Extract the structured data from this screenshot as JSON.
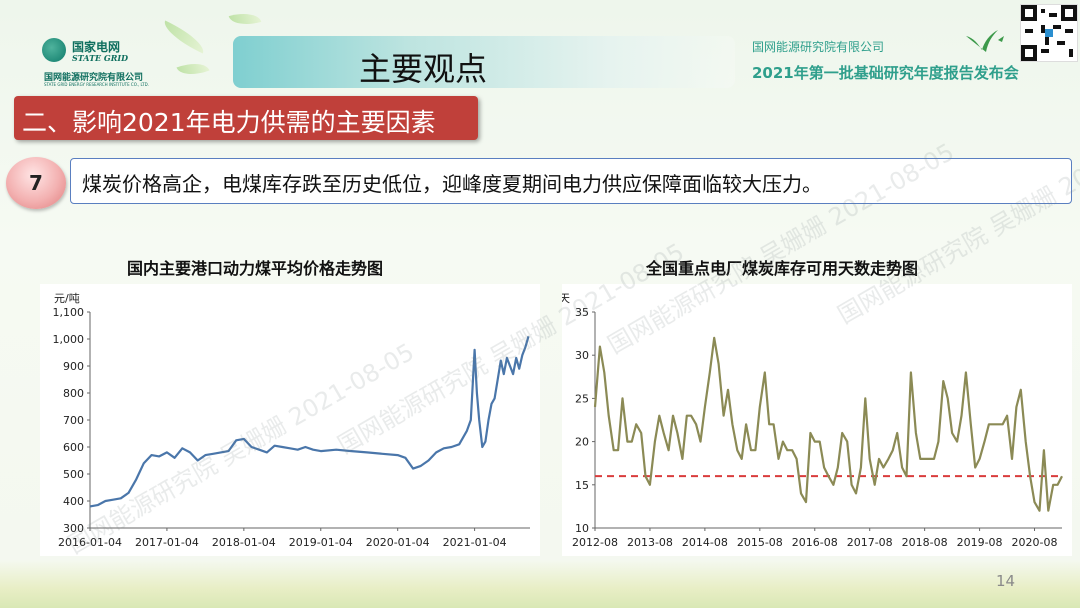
{
  "header": {
    "logo_cn": "国家电网",
    "logo_en": "STATE GRID",
    "logo_institute": "国网能源研究院有限公司",
    "logo_institute_en": "STATE GRID ENERGY RESEARCH INSTITUTE CO., LTD.",
    "title": "主要观点",
    "org_right": "国网能源研究院有限公司",
    "conference": "2021年第一批基础研究年度报告发布会"
  },
  "section": {
    "title": "二、影响2021年电力供需的主要因素"
  },
  "point": {
    "number": "7",
    "text": "煤炭价格高企，电煤库存跌至历史低位，迎峰度夏期间电力供应保障面临较大压力。"
  },
  "page_number": "14",
  "watermark": {
    "text": "国网能源研究院 吴姗姗 2021-08-05"
  },
  "chart_data": [
    {
      "type": "line",
      "title": "国内主要港口动力煤平均价格走势图",
      "ylabel": "元/吨",
      "xlabel": "",
      "ylim": [
        300,
        1100
      ],
      "yticks": [
        "300",
        "400",
        "500",
        "600",
        "700",
        "800",
        "900",
        "1,000",
        "1,100"
      ],
      "ytick_values": [
        300,
        400,
        500,
        600,
        700,
        800,
        900,
        1000,
        1100
      ],
      "xticks": [
        "2016-01-04",
        "2017-01-04",
        "2018-01-04",
        "2019-01-04",
        "2020-01-04",
        "2021-01-04"
      ],
      "xlim": [
        2016.0,
        2021.72
      ],
      "line_color": "#4a76aa",
      "x": [
        2016.0,
        2016.1,
        2016.2,
        2016.3,
        2016.4,
        2016.5,
        2016.6,
        2016.7,
        2016.8,
        2016.9,
        2017.0,
        2017.1,
        2017.2,
        2017.3,
        2017.4,
        2017.5,
        2017.6,
        2017.7,
        2017.8,
        2017.9,
        2018.0,
        2018.1,
        2018.2,
        2018.3,
        2018.4,
        2018.5,
        2018.6,
        2018.7,
        2018.8,
        2018.9,
        2019.0,
        2019.2,
        2019.4,
        2019.6,
        2019.8,
        2020.0,
        2020.1,
        2020.2,
        2020.3,
        2020.4,
        2020.5,
        2020.6,
        2020.7,
        2020.8,
        2020.9,
        2020.95,
        2021.0,
        2021.03,
        2021.06,
        2021.1,
        2021.14,
        2021.18,
        2021.22,
        2021.26,
        2021.3,
        2021.34,
        2021.38,
        2021.42,
        2021.46,
        2021.5,
        2021.54,
        2021.58,
        2021.62,
        2021.66,
        2021.7
      ],
      "values": [
        380,
        385,
        400,
        405,
        410,
        430,
        480,
        540,
        570,
        565,
        580,
        560,
        595,
        580,
        550,
        570,
        575,
        580,
        585,
        625,
        630,
        600,
        590,
        580,
        605,
        600,
        595,
        590,
        600,
        590,
        585,
        590,
        585,
        580,
        575,
        570,
        560,
        520,
        530,
        550,
        580,
        595,
        600,
        610,
        660,
        700,
        960,
        800,
        700,
        600,
        620,
        700,
        760,
        780,
        850,
        920,
        870,
        930,
        900,
        870,
        930,
        890,
        940,
        970,
        1010
      ]
    },
    {
      "type": "line",
      "title": "全国重点电厂煤炭库存可用天数走势图",
      "ylabel": "天",
      "xlabel": "",
      "ylim": [
        10,
        35
      ],
      "yticks": [
        "10",
        "15",
        "20",
        "25",
        "30",
        "35"
      ],
      "ytick_values": [
        10,
        15,
        20,
        25,
        30,
        35
      ],
      "xticks": [
        "2012-08",
        "2013-08",
        "2014-08",
        "2015-08",
        "2016-08",
        "2017-08",
        "2018-08",
        "2019-08",
        "2020-08"
      ],
      "xlim": [
        2012.58,
        2021.08
      ],
      "line_color": "#8b8a55",
      "reference_line": {
        "value": 16,
        "color": "#d93c3c",
        "style": "dashed"
      },
      "x": [
        2012.58,
        2012.67,
        2012.75,
        2012.83,
        2012.92,
        2013.0,
        2013.08,
        2013.17,
        2013.25,
        2013.33,
        2013.42,
        2013.5,
        2013.58,
        2013.67,
        2013.75,
        2013.83,
        2013.92,
        2014.0,
        2014.08,
        2014.17,
        2014.25,
        2014.33,
        2014.42,
        2014.5,
        2014.58,
        2014.67,
        2014.75,
        2014.83,
        2014.92,
        2015.0,
        2015.08,
        2015.17,
        2015.25,
        2015.33,
        2015.42,
        2015.5,
        2015.58,
        2015.67,
        2015.75,
        2015.83,
        2015.92,
        2016.0,
        2016.08,
        2016.17,
        2016.25,
        2016.33,
        2016.42,
        2016.5,
        2016.58,
        2016.67,
        2016.75,
        2016.83,
        2016.92,
        2017.0,
        2017.08,
        2017.17,
        2017.25,
        2017.33,
        2017.42,
        2017.5,
        2017.58,
        2017.67,
        2017.75,
        2017.83,
        2017.92,
        2018.0,
        2018.08,
        2018.17,
        2018.25,
        2018.33,
        2018.42,
        2018.5,
        2018.58,
        2018.67,
        2018.75,
        2018.83,
        2018.92,
        2019.0,
        2019.08,
        2019.17,
        2019.25,
        2019.33,
        2019.42,
        2019.5,
        2019.58,
        2019.67,
        2019.75,
        2019.83,
        2019.92,
        2020.0,
        2020.08,
        2020.17,
        2020.25,
        2020.33,
        2020.42,
        2020.5,
        2020.58,
        2020.67,
        2020.75,
        2020.83,
        2020.92,
        2021.0,
        2021.08
      ],
      "values": [
        24,
        31,
        28,
        23,
        19,
        19,
        25,
        20,
        20,
        22,
        21,
        16,
        15,
        20,
        23,
        21,
        19,
        23,
        21,
        18,
        23,
        23,
        22,
        20,
        24,
        28,
        32,
        29,
        23,
        26,
        22,
        19,
        18,
        22,
        19,
        19,
        24,
        28,
        22,
        22,
        18,
        20,
        19,
        19,
        18,
        14,
        13,
        21,
        20,
        20,
        17,
        16,
        15,
        17,
        21,
        20,
        15,
        14,
        17,
        25,
        18,
        15,
        18,
        17,
        18,
        19,
        21,
        17,
        16,
        28,
        21,
        18,
        18,
        18,
        18,
        20,
        27,
        25,
        21,
        20,
        23,
        28,
        22,
        17,
        18,
        20,
        22,
        22,
        22,
        22,
        23,
        18,
        24,
        26,
        20,
        16,
        13,
        12,
        19,
        12,
        15,
        15,
        16
      ]
    }
  ]
}
